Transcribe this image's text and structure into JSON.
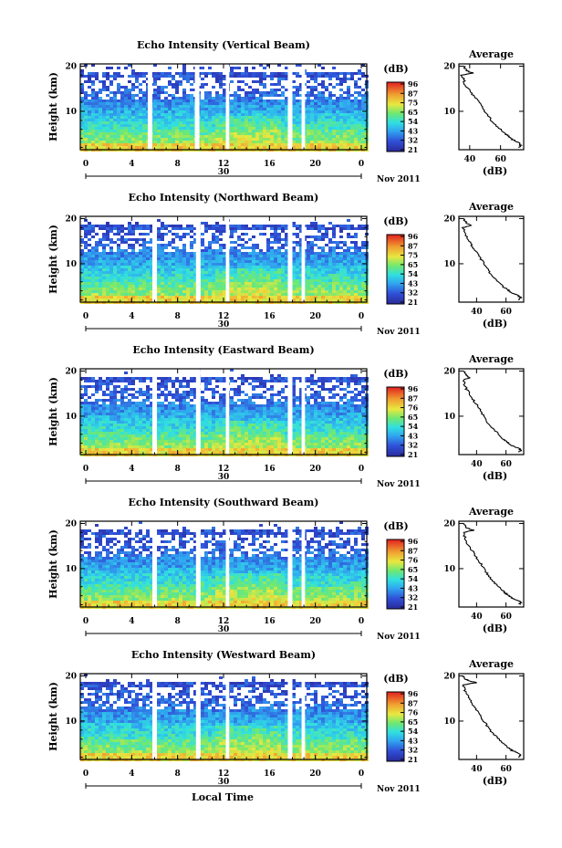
{
  "figure": {
    "xlabel": "Local Time",
    "date_label": "30",
    "month_label": "Nov 2011",
    "profile_xlabel": "(dB)",
    "colorbar_unit": "(dB)"
  },
  "chart_data": [
    {
      "type": "heatmap",
      "title": "Echo Intensity (Vertical Beam)",
      "ylabel": "Height (km)",
      "xlabel": "Local Time",
      "x_ticks": [
        "0",
        "4",
        "8",
        "12",
        "16",
        "20",
        "0"
      ],
      "x_range_hours": [
        0,
        24
      ],
      "y_ticks": [
        "10",
        "20"
      ],
      "y_range_km": [
        1.5,
        20.5
      ],
      "colorbar": {
        "unit": "(dB)",
        "ticks": [
          "96",
          "87",
          "75",
          "65",
          "54",
          "43",
          "32",
          "21"
        ]
      },
      "data_gaps_hours": [
        [
          5.4,
          5.8
        ],
        [
          9.5,
          9.9
        ],
        [
          12.2,
          12.5
        ],
        [
          17.6,
          18.0
        ],
        [
          18.8,
          19.1
        ]
      ],
      "profile": {
        "title": "Average",
        "xlabel": "(dB)",
        "x_ticks": [
          "40",
          "60"
        ],
        "x_range": [
          33,
          75
        ],
        "y_ticks": [
          "10",
          "20"
        ],
        "height_km": [
          2,
          2.5,
          3,
          3.5,
          4,
          4.5,
          5,
          6,
          7,
          8,
          9,
          10,
          11,
          12,
          13,
          14,
          15,
          16,
          17,
          18,
          18.5,
          19,
          19.5,
          20
        ],
        "value_db": [
          72,
          73,
          72,
          69,
          67,
          65,
          63,
          60,
          57,
          54,
          52,
          50,
          48,
          46,
          44,
          41,
          39,
          37,
          36,
          35,
          42,
          38,
          37,
          36
        ]
      }
    },
    {
      "type": "heatmap",
      "title": "Echo Intensity (Northward Beam)",
      "ylabel": "Height (km)",
      "xlabel": "Local Time",
      "x_ticks": [
        "0",
        "4",
        "8",
        "12",
        "16",
        "20",
        "0"
      ],
      "x_range_hours": [
        0,
        24
      ],
      "y_ticks": [
        "10",
        "20"
      ],
      "y_range_km": [
        1.5,
        20.5
      ],
      "colorbar": {
        "unit": "(dB)",
        "ticks": [
          "96",
          "87",
          "75",
          "65",
          "54",
          "43",
          "32",
          "21"
        ]
      },
      "data_gaps_hours": [
        [
          5.8,
          6.2
        ],
        [
          9.6,
          10.0
        ],
        [
          12.2,
          12.5
        ],
        [
          17.6,
          18.0
        ],
        [
          18.8,
          19.1
        ]
      ],
      "profile": {
        "title": "Average",
        "xlabel": "(dB)",
        "x_ticks": [
          "40",
          "60"
        ],
        "x_range": [
          28,
          72
        ],
        "y_ticks": [
          "10",
          "20"
        ],
        "height_km": [
          2,
          2.5,
          3,
          3.5,
          4,
          4.5,
          5,
          6,
          7,
          8,
          9,
          10,
          11,
          12,
          13,
          14,
          15,
          16,
          17,
          18,
          18.5,
          19,
          19.5,
          20
        ],
        "value_db": [
          69,
          70,
          68,
          64,
          62,
          60,
          58,
          55,
          52,
          49,
          47,
          45,
          43,
          41,
          39,
          37,
          35,
          33,
          32,
          31,
          36,
          33,
          32,
          31
        ]
      }
    },
    {
      "type": "heatmap",
      "title": "Echo Intensity (Eastward Beam)",
      "ylabel": "Height (km)",
      "xlabel": "Local Time",
      "x_ticks": [
        "0",
        "4",
        "8",
        "12",
        "16",
        "20",
        "0"
      ],
      "x_range_hours": [
        0,
        24
      ],
      "y_ticks": [
        "10",
        "20"
      ],
      "y_range_km": [
        1.5,
        20.5
      ],
      "colorbar": {
        "unit": "(dB)",
        "ticks": [
          "96",
          "87",
          "76",
          "65",
          "54",
          "43",
          "32",
          "21"
        ]
      },
      "data_gaps_hours": [
        [
          5.8,
          6.2
        ],
        [
          9.6,
          10.0
        ],
        [
          12.2,
          12.5
        ],
        [
          17.6,
          18.0
        ],
        [
          18.8,
          19.1
        ]
      ],
      "profile": {
        "title": "Average",
        "xlabel": "(dB)",
        "x_ticks": [
          "40",
          "60"
        ],
        "x_range": [
          28,
          72
        ],
        "y_ticks": [
          "10",
          "20"
        ],
        "height_km": [
          2,
          2.5,
          3,
          3.5,
          4,
          4.5,
          5,
          6,
          7,
          8,
          9,
          10,
          11,
          12,
          13,
          14,
          15,
          16,
          17,
          18,
          18.5,
          19,
          19.5,
          20
        ],
        "value_db": [
          69,
          70,
          68,
          64,
          62,
          60,
          58,
          55,
          52,
          49,
          47,
          45,
          43,
          41,
          39,
          37,
          35,
          33,
          32,
          31,
          35,
          33,
          32,
          31
        ]
      }
    },
    {
      "type": "heatmap",
      "title": "Echo Intensity (Southward Beam)",
      "ylabel": "Height (km)",
      "xlabel": "Local Time",
      "x_ticks": [
        "0",
        "4",
        "8",
        "12",
        "16",
        "20",
        "0"
      ],
      "x_range_hours": [
        0,
        24
      ],
      "y_ticks": [
        "10",
        "20"
      ],
      "y_range_km": [
        1.5,
        20.5
      ],
      "colorbar": {
        "unit": "(dB)",
        "ticks": [
          "96",
          "87",
          "76",
          "65",
          "54",
          "43",
          "32",
          "21"
        ]
      },
      "data_gaps_hours": [
        [
          5.8,
          6.2
        ],
        [
          9.6,
          10.0
        ],
        [
          12.2,
          12.5
        ],
        [
          17.6,
          18.0
        ],
        [
          18.8,
          19.1
        ]
      ],
      "profile": {
        "title": "Average",
        "xlabel": "(dB)",
        "x_ticks": [
          "40",
          "60"
        ],
        "x_range": [
          28,
          72
        ],
        "y_ticks": [
          "10",
          "20"
        ],
        "height_km": [
          2,
          2.5,
          3,
          3.5,
          4,
          4.5,
          5,
          6,
          7,
          8,
          9,
          10,
          11,
          12,
          13,
          14,
          15,
          16,
          17,
          18,
          18.5,
          19,
          19.5,
          20
        ],
        "value_db": [
          69,
          70,
          68,
          64,
          62,
          60,
          58,
          55,
          52,
          49,
          47,
          45,
          43,
          41,
          39,
          37,
          35,
          33,
          32,
          31,
          38,
          33,
          32,
          31
        ]
      }
    },
    {
      "type": "heatmap",
      "title": "Echo Intensity (Westward Beam)",
      "ylabel": "Height (km)",
      "xlabel": "Local Time",
      "x_ticks": [
        "0",
        "4",
        "8",
        "12",
        "16",
        "20",
        "0"
      ],
      "x_range_hours": [
        0,
        24
      ],
      "y_ticks": [
        "10",
        "20"
      ],
      "y_range_km": [
        1.5,
        20.5
      ],
      "colorbar": {
        "unit": "(dB)",
        "ticks": [
          "96",
          "87",
          "76",
          "65",
          "54",
          "43",
          "32",
          "21"
        ]
      },
      "data_gaps_hours": [
        [
          5.8,
          6.2
        ],
        [
          9.6,
          10.0
        ],
        [
          12.2,
          12.5
        ],
        [
          17.6,
          18.0
        ],
        [
          18.8,
          19.1
        ]
      ],
      "profile": {
        "title": "Average",
        "xlabel": "(dB)",
        "x_ticks": [
          "40",
          "60"
        ],
        "x_range": [
          28,
          72
        ],
        "y_ticks": [
          "10",
          "20"
        ],
        "height_km": [
          2,
          2.5,
          3,
          3.5,
          4,
          4.5,
          5,
          6,
          7,
          8,
          9,
          10,
          11,
          12,
          13,
          14,
          15,
          16,
          17,
          18,
          18.5,
          19,
          19.5,
          20
        ],
        "value_db": [
          69,
          70,
          68,
          64,
          62,
          60,
          58,
          55,
          52,
          49,
          47,
          45,
          43,
          41,
          39,
          37,
          35,
          33,
          32,
          31,
          40,
          34,
          32,
          31
        ]
      }
    }
  ]
}
